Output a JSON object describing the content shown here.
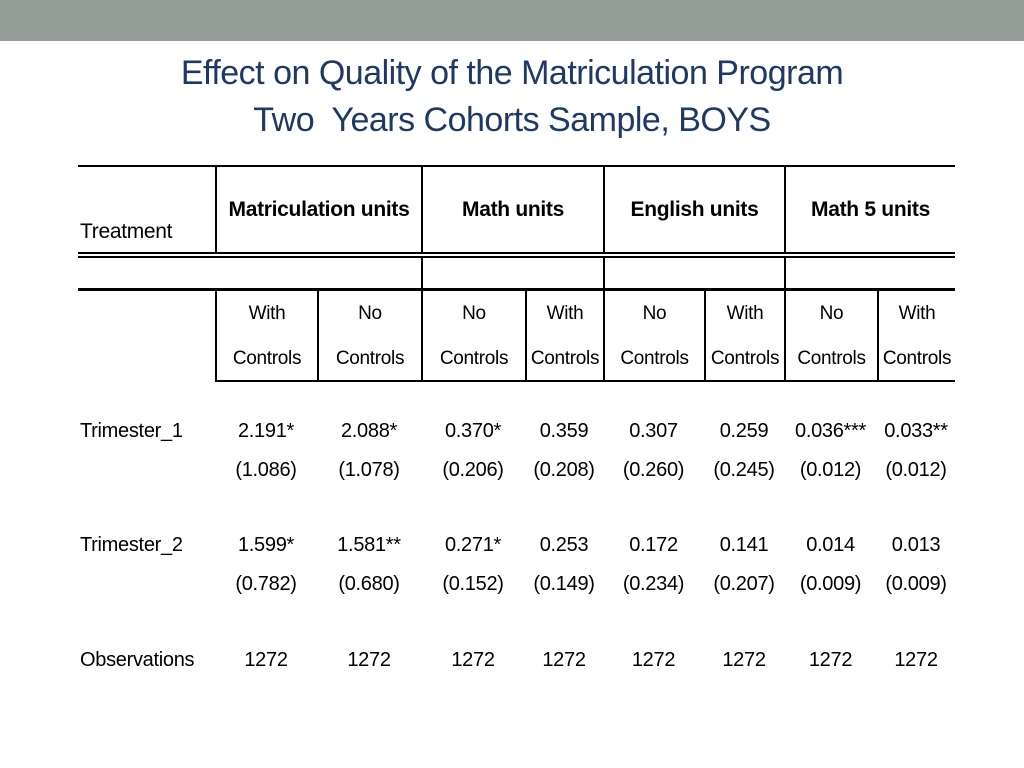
{
  "slide": {
    "band_color": "#929E97",
    "title_color": "#1F3864",
    "title_line1": "Effect on Quality of the Matriculation Program",
    "title_line2": "Two  Years Cohorts Sample, BOYS"
  },
  "table": {
    "row_header_label": "Treatment",
    "groups": [
      {
        "label": "Matriculation units"
      },
      {
        "label": "Math units"
      },
      {
        "label": "English units"
      },
      {
        "label": "Math 5 units"
      }
    ],
    "sub_headers": [
      {
        "l1": "With",
        "l2": "Controls"
      },
      {
        "l1": "No",
        "l2": "Controls"
      },
      {
        "l1": "No",
        "l2": "Controls"
      },
      {
        "l1": "With",
        "l2": "Controls"
      },
      {
        "l1": "No",
        "l2": "Controls"
      },
      {
        "l1": "With",
        "l2": "Controls"
      },
      {
        "l1": "No",
        "l2": "Controls"
      },
      {
        "l1": "With",
        "l2": "Controls"
      }
    ],
    "rows": [
      {
        "label": "Trimester_1",
        "coefs": [
          "2.191*",
          "2.088*",
          "0.370*",
          "0.359",
          "0.307",
          "0.259",
          "0.036***",
          "0.033**"
        ],
        "ses": [
          "(1.086)",
          "(1.078)",
          "(0.206)",
          "(0.208)",
          "(0.260)",
          "(0.245)",
          "(0.012)",
          "(0.012)"
        ]
      },
      {
        "label": "Trimester_2",
        "coefs": [
          "1.599*",
          "1.581**",
          "0.271*",
          "0.253",
          "0.172",
          "0.141",
          "0.014",
          "0.013"
        ],
        "ses": [
          "(0.782)",
          "(0.680)",
          "(0.152)",
          "(0.149)",
          "(0.234)",
          "(0.207)",
          "(0.009)",
          "(0.009)"
        ]
      }
    ],
    "observations": {
      "label": "Observations",
      "values": [
        "1272",
        "1272",
        "1272",
        "1272",
        "1272",
        "1272",
        "1272",
        "1272"
      ]
    }
  }
}
